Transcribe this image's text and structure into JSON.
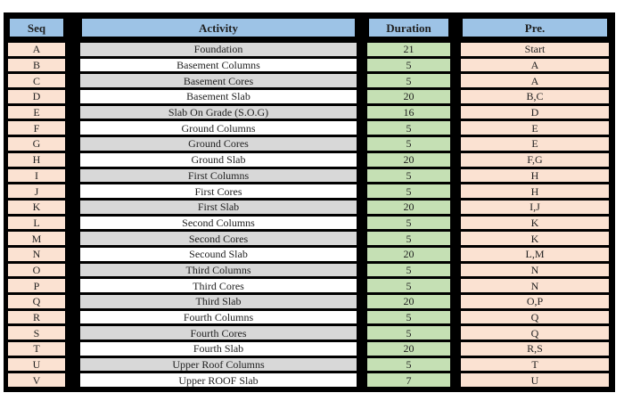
{
  "colors": {
    "page-bg": "#ffffff",
    "grid-black": "#000000",
    "header-blue": "#9DC3E6",
    "seq-pre-peach": "#FBE2D2",
    "duration-green": "#C5E0B4",
    "stripe-gray": "#D8D8D8",
    "stripe-white": "#FFFFFF",
    "text-dark": "#1F1F1F"
  },
  "table": {
    "headers": [
      "Seq",
      "Activity",
      "Duration",
      "Pre."
    ],
    "rows": [
      {
        "seq": "A",
        "activity": "Foundation",
        "duration": "21",
        "pre": "Start"
      },
      {
        "seq": "B",
        "activity": "Basement Columns",
        "duration": "5",
        "pre": "A"
      },
      {
        "seq": "C",
        "activity": "Basement Cores",
        "duration": "5",
        "pre": "A"
      },
      {
        "seq": "D",
        "activity": "Basement Slab",
        "duration": "20",
        "pre": "B,C"
      },
      {
        "seq": "E",
        "activity": "Slab On Grade (S.O.G)",
        "duration": "16",
        "pre": "D"
      },
      {
        "seq": "F",
        "activity": "Ground Columns",
        "duration": "5",
        "pre": "E"
      },
      {
        "seq": "G",
        "activity": "Ground Cores",
        "duration": "5",
        "pre": "E"
      },
      {
        "seq": "H",
        "activity": "Ground Slab",
        "duration": "20",
        "pre": "F,G"
      },
      {
        "seq": "I",
        "activity": "First Columns",
        "duration": "5",
        "pre": "H"
      },
      {
        "seq": "J",
        "activity": "First Cores",
        "duration": "5",
        "pre": "H"
      },
      {
        "seq": "K",
        "activity": "First Slab",
        "duration": "20",
        "pre": "I,J"
      },
      {
        "seq": "L",
        "activity": "Second Columns",
        "duration": "5",
        "pre": "K"
      },
      {
        "seq": "M",
        "activity": "Second Cores",
        "duration": "5",
        "pre": "K"
      },
      {
        "seq": "N",
        "activity": "Secound Slab",
        "duration": "20",
        "pre": "L,M"
      },
      {
        "seq": "O",
        "activity": "Third Columns",
        "duration": "5",
        "pre": "N"
      },
      {
        "seq": "P",
        "activity": "Third Cores",
        "duration": "5",
        "pre": "N"
      },
      {
        "seq": "Q",
        "activity": "Third Slab",
        "duration": "20",
        "pre": "O,P"
      },
      {
        "seq": "R",
        "activity": "Fourth Columns",
        "duration": "5",
        "pre": "Q"
      },
      {
        "seq": "S",
        "activity": "Fourth Cores",
        "duration": "5",
        "pre": "Q"
      },
      {
        "seq": "T",
        "activity": "Fourth Slab",
        "duration": "20",
        "pre": "R,S"
      },
      {
        "seq": "U",
        "activity": "Upper Roof Columns",
        "duration": "5",
        "pre": "T"
      },
      {
        "seq": "V",
        "activity": "Upper ROOF Slab",
        "duration": "7",
        "pre": "U"
      }
    ]
  }
}
